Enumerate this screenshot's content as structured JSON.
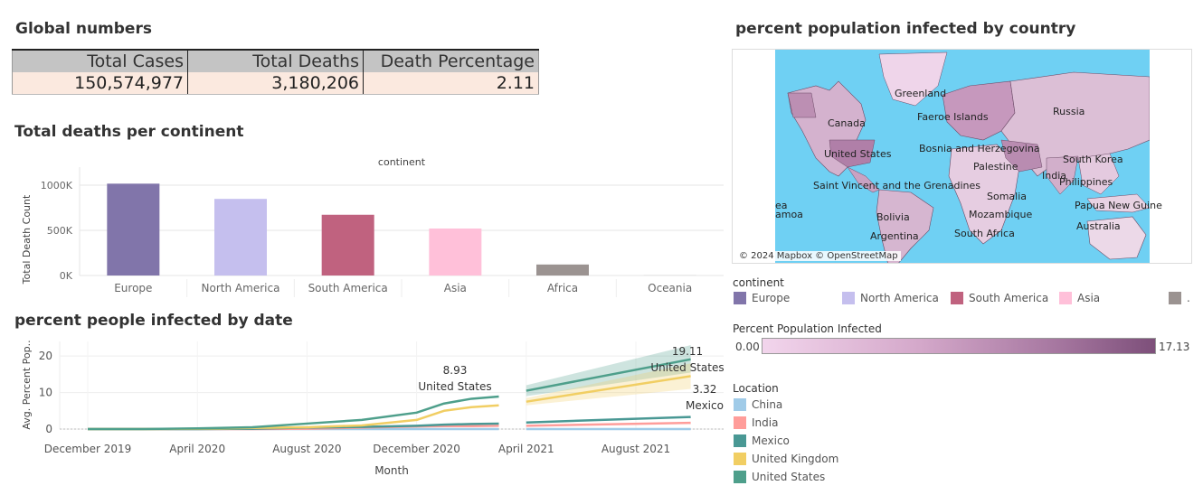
{
  "global_numbers": {
    "title": "Global numbers",
    "headers": [
      "Total Cases",
      "Total Deaths",
      "Death Percentage"
    ],
    "values": [
      "150,574,977",
      "3,180,206",
      "2.11"
    ]
  },
  "deaths_chart": {
    "title": "Total deaths per continent",
    "header": "continent",
    "ylabel": "Total Death Count",
    "yticks": [
      "1000K",
      "500K",
      "0K"
    ]
  },
  "infected_chart": {
    "title": "percent people infected by date",
    "ylabel": "Avg. Percent Pop..",
    "xlabel": "Month",
    "xticks": [
      "December 2019",
      "April 2020",
      "August 2020",
      "December 2020",
      "April 2021",
      "August 2021"
    ],
    "yticks": [
      "20",
      "10",
      "0"
    ],
    "annotations": [
      {
        "value": "8.93",
        "label": "United States"
      },
      {
        "value": "19.11",
        "label": "United States"
      },
      {
        "value": "3.32",
        "label": "Mexico"
      }
    ]
  },
  "map": {
    "title": "percent population infected by country",
    "attribution": "© 2024 Mapbox © OpenStreetMap",
    "labels": [
      "Greenland",
      "Canada",
      "Faeroe Islands",
      "Russia",
      "Bosnia and Herzegovina",
      "United States",
      "Palestine",
      "South Korea",
      "India",
      "Philippines",
      "Saint Vincent and the Grenadines",
      "Somalia",
      "ea",
      "amoa",
      "Papua New Guine",
      "Bolivia",
      "Mozambique",
      "Australia",
      "Argentina",
      "South Africa"
    ]
  },
  "continent_legend": {
    "title": "continent",
    "items": [
      "Europe",
      "North America",
      "South America",
      "Asia",
      "."
    ]
  },
  "ppi_legend": {
    "title": "Percent Population Infected",
    "min": "0.00",
    "max": "17.13"
  },
  "location_legend": {
    "title": "Location",
    "items": [
      "China",
      "India",
      "Mexico",
      "United Kingdom",
      "United States"
    ]
  },
  "colors": {
    "europe": "#8175aa",
    "north_america": "#c5bfee",
    "south_america": "#c0627f",
    "asia": "#ffc0d9",
    "africa": "#9b9391",
    "china": "#a0cbe8",
    "india": "#ff9d9a",
    "mexico": "#499894",
    "united_kingdom": "#f1ce63",
    "united_states": "#4e9f8b",
    "ocean": "#6fd0f3"
  },
  "chart_data": [
    {
      "type": "bar",
      "title": "Total deaths per continent",
      "xlabel": "continent",
      "ylabel": "Total Death Count",
      "categories": [
        "Europe",
        "North America",
        "South America",
        "Asia",
        "Africa",
        "Oceania"
      ],
      "values": [
        1016750,
        847942,
        672415,
        520269,
        121784,
        1046
      ],
      "ylim": [
        0,
        1100000
      ]
    },
    {
      "type": "line",
      "title": "percent people infected by date",
      "xlabel": "Month",
      "ylabel": "Avg. Percent Pop..",
      "x": [
        "2019-12",
        "2020-02",
        "2020-04",
        "2020-06",
        "2020-08",
        "2020-10",
        "2020-12",
        "2021-01",
        "2021-02",
        "2021-03",
        "2021-04"
      ],
      "series": [
        {
          "name": "United States",
          "values": [
            0.0,
            0.0,
            0.2,
            0.5,
            1.5,
            2.5,
            4.5,
            7.0,
            8.3,
            8.9,
            null
          ]
        },
        {
          "name": "United Kingdom",
          "values": [
            0.0,
            0.0,
            0.1,
            0.3,
            0.5,
            1.0,
            2.5,
            5.0,
            6.0,
            6.5,
            null
          ]
        },
        {
          "name": "Mexico",
          "values": [
            0.0,
            0.0,
            0.0,
            0.1,
            0.4,
            0.6,
            0.9,
            1.2,
            1.4,
            1.5,
            null
          ]
        },
        {
          "name": "India",
          "values": [
            0.0,
            0.0,
            0.0,
            0.0,
            0.1,
            0.4,
            0.7,
            0.8,
            0.8,
            0.9,
            null
          ]
        },
        {
          "name": "China",
          "values": [
            0.0,
            0.0,
            0.0,
            0.0,
            0.0,
            0.0,
            0.0,
            0.0,
            0.0,
            0.0,
            null
          ]
        }
      ],
      "forecast": {
        "x": [
          "2021-04",
          "2021-10"
        ],
        "series": [
          {
            "name": "United States",
            "values": [
              10.5,
              19.11
            ],
            "band": [
              [
                9.0,
                12.0
              ],
              [
                15.5,
                23.0
              ]
            ]
          },
          {
            "name": "United Kingdom",
            "values": [
              7.5,
              14.5
            ],
            "band": [
              [
                6.5,
                8.5
              ],
              [
                11.0,
                18.0
              ]
            ]
          },
          {
            "name": "Mexico",
            "values": [
              1.8,
              3.32
            ]
          },
          {
            "name": "India",
            "values": [
              0.9,
              1.7
            ]
          },
          {
            "name": "China",
            "values": [
              0.0,
              0.0
            ]
          }
        ]
      },
      "ylim": [
        0,
        24
      ]
    }
  ]
}
